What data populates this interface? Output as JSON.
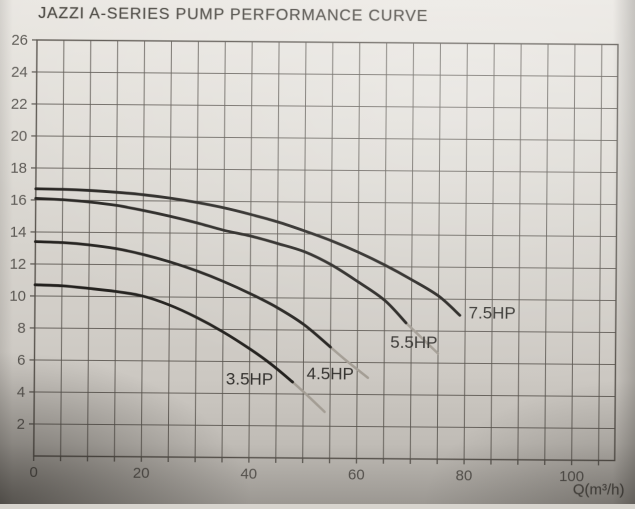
{
  "chart_data": {
    "type": "line",
    "title": "JAZZI A-SERIES PUMP PERFORMANCE CURVE",
    "xlabel": "Q(m³/h)",
    "ylabel": "",
    "xlim": [
      0,
      108
    ],
    "ylim": [
      0,
      26
    ],
    "x_grid_step": 5,
    "y_grid_step": 2,
    "grid": true,
    "legend_position": "inline-curve-labels",
    "x_ticks": [
      0,
      20,
      40,
      60,
      80,
      100
    ],
    "y_ticks": [
      2,
      4,
      6,
      8,
      10,
      12,
      14,
      16,
      18,
      20,
      22,
      24,
      26
    ],
    "series": [
      {
        "name": "3.5HP",
        "solid": [
          [
            0,
            10.7
          ],
          [
            5,
            10.65
          ],
          [
            10,
            10.5
          ],
          [
            15,
            10.32
          ],
          [
            20,
            10.05
          ],
          [
            25,
            9.5
          ],
          [
            30,
            8.75
          ],
          [
            35,
            7.85
          ],
          [
            40,
            6.8
          ],
          [
            44,
            5.85
          ],
          [
            48,
            4.75
          ]
        ],
        "fade": [
          [
            48,
            4.75
          ],
          [
            51,
            3.85
          ],
          [
            54,
            2.9
          ]
        ],
        "label_at": [
          40,
          4.95
        ]
      },
      {
        "name": "4.5HP",
        "solid": [
          [
            0,
            13.4
          ],
          [
            5,
            13.35
          ],
          [
            10,
            13.22
          ],
          [
            15,
            13.0
          ],
          [
            20,
            12.65
          ],
          [
            25,
            12.2
          ],
          [
            30,
            11.65
          ],
          [
            35,
            11.0
          ],
          [
            40,
            10.25
          ],
          [
            45,
            9.4
          ],
          [
            50,
            8.35
          ],
          [
            55,
            6.95
          ]
        ],
        "fade": [
          [
            55,
            6.95
          ],
          [
            58,
            6.1
          ],
          [
            62,
            5.05
          ]
        ],
        "label_at": [
          55,
          5.3
        ]
      },
      {
        "name": "5.5HP",
        "solid": [
          [
            0,
            16.1
          ],
          [
            5,
            16.03
          ],
          [
            10,
            15.9
          ],
          [
            15,
            15.7
          ],
          [
            20,
            15.4
          ],
          [
            25,
            15.05
          ],
          [
            30,
            14.65
          ],
          [
            35,
            14.2
          ],
          [
            40,
            13.85
          ],
          [
            45,
            13.4
          ],
          [
            50,
            12.9
          ],
          [
            55,
            12.1
          ],
          [
            60,
            11.05
          ],
          [
            65,
            9.9
          ],
          [
            69,
            8.5
          ]
        ],
        "fade": [
          [
            69,
            8.5
          ],
          [
            72,
            7.55
          ],
          [
            75,
            6.6
          ]
        ],
        "label_at": [
          70.5,
          7.3
        ]
      },
      {
        "name": "7.5HP",
        "solid": [
          [
            0,
            16.7
          ],
          [
            5,
            16.68
          ],
          [
            10,
            16.62
          ],
          [
            15,
            16.52
          ],
          [
            20,
            16.38
          ],
          [
            25,
            16.18
          ],
          [
            30,
            15.92
          ],
          [
            35,
            15.6
          ],
          [
            40,
            15.2
          ],
          [
            45,
            14.75
          ],
          [
            50,
            14.2
          ],
          [
            55,
            13.6
          ],
          [
            60,
            12.9
          ],
          [
            65,
            12.1
          ],
          [
            70,
            11.2
          ],
          [
            75,
            10.2
          ],
          [
            79,
            9.0
          ]
        ],
        "fade": null,
        "label_at": [
          85,
          9.2
        ]
      }
    ],
    "colors": {
      "curve": "#23211e",
      "curve_fade": "#a39d94",
      "grid": "#57534d",
      "title_text": "#45423c",
      "tick_text": "#55524d",
      "label_text": "#33312e"
    }
  }
}
